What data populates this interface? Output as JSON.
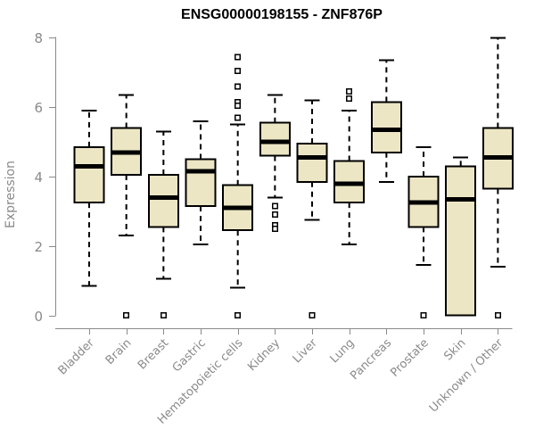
{
  "chart_data": {
    "type": "boxplot",
    "title": "ENSG00000198155 - ZNF876P",
    "ylabel": "Expression",
    "ylim": [
      0,
      8
    ],
    "yticks": [
      0,
      2,
      4,
      6,
      8
    ],
    "grid": false,
    "legend": "none",
    "categories": [
      "Bladder",
      "Brain",
      "Breast",
      "Gastric",
      "Hematopoietic cells",
      "Kidney",
      "Liver",
      "Lung",
      "Pancreas",
      "Prostate",
      "Skin",
      "Unknown / Other"
    ],
    "boxes": [
      {
        "category": "Bladder",
        "low": 0.85,
        "q1": 3.25,
        "median": 4.3,
        "q3": 4.85,
        "high": 5.9,
        "outliers": []
      },
      {
        "category": "Brain",
        "low": 2.3,
        "q1": 4.05,
        "median": 4.7,
        "q3": 5.4,
        "high": 6.35,
        "outliers": [
          0
        ]
      },
      {
        "category": "Breast",
        "low": 1.05,
        "q1": 2.55,
        "median": 3.4,
        "q3": 4.05,
        "high": 5.3,
        "outliers": [
          0
        ]
      },
      {
        "category": "Gastric",
        "low": 2.05,
        "q1": 3.15,
        "median": 4.15,
        "q3": 4.5,
        "high": 5.6,
        "outliers": []
      },
      {
        "category": "Hematopoietic cells",
        "low": 0.8,
        "q1": 2.45,
        "median": 3.1,
        "q3": 3.75,
        "high": 5.5,
        "outliers": [
          7.45,
          7.05,
          6.6,
          6.15,
          6.05,
          5.7,
          0
        ]
      },
      {
        "category": "Kidney",
        "low": 3.4,
        "q1": 4.6,
        "median": 5.0,
        "q3": 5.55,
        "high": 6.35,
        "outliers": [
          3.15,
          2.9,
          2.6,
          2.5
        ]
      },
      {
        "category": "Liver",
        "low": 2.75,
        "q1": 3.85,
        "median": 4.55,
        "q3": 4.95,
        "high": 6.2,
        "outliers": [
          0
        ]
      },
      {
        "category": "Lung",
        "low": 2.05,
        "q1": 3.25,
        "median": 3.8,
        "q3": 4.45,
        "high": 5.9,
        "outliers": [
          6.45,
          6.25
        ]
      },
      {
        "category": "Pancreas",
        "low": 3.85,
        "q1": 4.7,
        "median": 5.35,
        "q3": 6.15,
        "high": 7.35,
        "outliers": []
      },
      {
        "category": "Prostate",
        "low": 1.45,
        "q1": 2.55,
        "median": 3.25,
        "q3": 4.0,
        "high": 4.85,
        "outliers": [
          0
        ]
      },
      {
        "category": "Skin",
        "low": 0.0,
        "q1": 0.0,
        "median": 3.35,
        "q3": 4.3,
        "high": 4.55,
        "outliers": []
      },
      {
        "category": "Unknown / Other",
        "low": 1.4,
        "q1": 3.65,
        "median": 4.55,
        "q3": 5.4,
        "high": 8.0,
        "outliers": [
          0
        ]
      }
    ],
    "colors": {
      "box_fill": "#EDE6C4",
      "box_stroke": "#000000",
      "median": "#000000",
      "axis": "#8a8a8a",
      "text": "#8a8a8a",
      "title": "#000000",
      "background": "#ffffff"
    }
  }
}
